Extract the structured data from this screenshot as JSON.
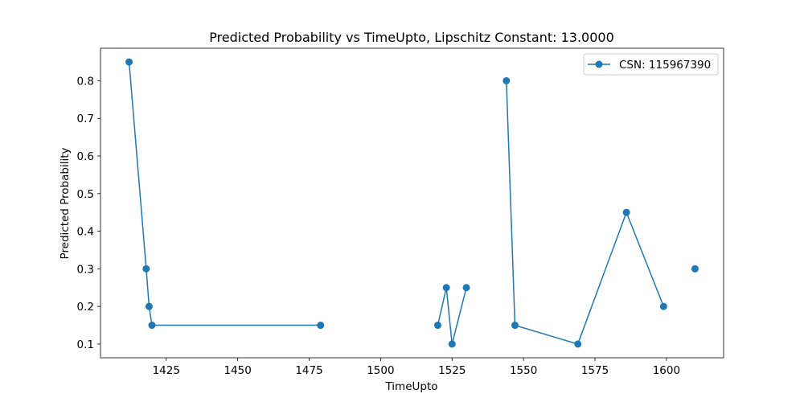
{
  "chart_data": {
    "type": "line",
    "title": "Predicted Probability vs TimeUpto, Lipschitz Constant: 13.0000",
    "xlabel": "TimeUpto",
    "ylabel": "Predicted Probability",
    "xlim": [
      1402,
      1620
    ],
    "ylim": [
      0.0635,
      0.8865
    ],
    "xticks": [
      1425,
      1450,
      1475,
      1500,
      1525,
      1550,
      1575,
      1600
    ],
    "yticks": [
      0.1,
      0.2,
      0.3,
      0.4,
      0.5,
      0.6,
      0.7,
      0.8
    ],
    "grid": false,
    "legend_position": "top-right",
    "series_color": "#1f77b4",
    "series": [
      {
        "name": "CSN: 115967390",
        "segments": [
          [
            [
              1412,
              0.85
            ],
            [
              1418,
              0.3
            ],
            [
              1419,
              0.2
            ],
            [
              1420,
              0.15
            ],
            [
              1479,
              0.15
            ]
          ],
          [
            [
              1520,
              0.15
            ],
            [
              1523,
              0.25
            ],
            [
              1525,
              0.1
            ],
            [
              1530,
              0.25
            ]
          ],
          [
            [
              1544,
              0.8
            ],
            [
              1547,
              0.15
            ],
            [
              1569,
              0.1
            ],
            [
              1586,
              0.45
            ],
            [
              1599,
              0.2
            ]
          ],
          [
            [
              1610,
              0.3
            ]
          ]
        ]
      }
    ]
  }
}
